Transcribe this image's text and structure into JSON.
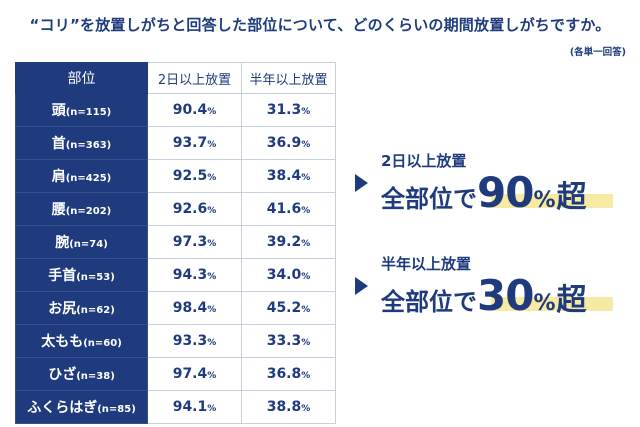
{
  "title": "“コリ”を放置しがちと回答した部位について、どのくらいの期間放置しがちですか。",
  "note": "(各単一回答)",
  "chart_data": {
    "type": "table",
    "columns": [
      "部位",
      "2日以上放置",
      "半年以上放置"
    ],
    "rows": [
      {
        "part": "頭",
        "n": "(n=115)",
        "v1": "90.4",
        "v2": "31.3"
      },
      {
        "part": "首",
        "n": "(n=363)",
        "v1": "93.7",
        "v2": "36.9"
      },
      {
        "part": "肩",
        "n": "(n=425)",
        "v1": "92.5",
        "v2": "38.4"
      },
      {
        "part": "腰",
        "n": "(n=202)",
        "v1": "92.6",
        "v2": "41.6"
      },
      {
        "part": "腕",
        "n": "(n=74)",
        "v1": "97.3",
        "v2": "39.2"
      },
      {
        "part": "手首",
        "n": "(n=53)",
        "v1": "94.3",
        "v2": "34.0"
      },
      {
        "part": "お尻",
        "n": "(n=62)",
        "v1": "98.4",
        "v2": "45.2"
      },
      {
        "part": "太もも",
        "n": "(n=60)",
        "v1": "93.3",
        "v2": "33.3"
      },
      {
        "part": "ひざ",
        "n": "(n=38)",
        "v1": "97.4",
        "v2": "36.8"
      },
      {
        "part": "ふくらはぎ",
        "n": "(n=85)",
        "v1": "94.1",
        "v2": "38.8"
      }
    ],
    "unit": "%"
  },
  "callouts": [
    {
      "sub": "2日以上放置",
      "lead": "全部位で",
      "num": "90",
      "pct": "%",
      "suffix": "超"
    },
    {
      "sub": "半年以上放置",
      "lead": "全部位で",
      "num": "30",
      "pct": "%",
      "suffix": "超"
    }
  ],
  "colors": {
    "navy": "#1f3b7e",
    "highlight": "#f7eaa3",
    "border": "#c9cfdc"
  }
}
